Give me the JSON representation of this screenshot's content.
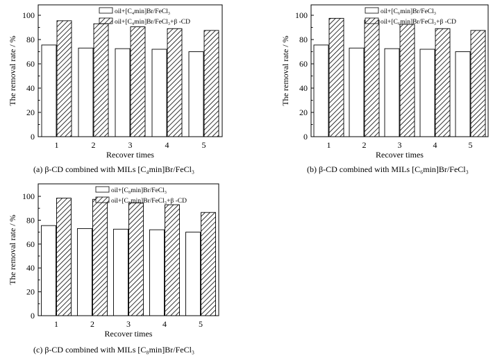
{
  "chart_data": [
    {
      "type": "bar",
      "panel": "a",
      "caption": "(a) β-CD combined with MILs [C₄min]Br/FeCl₃",
      "xlabel": "Recover times",
      "ylabel": "The removal rate / %",
      "categories": [
        "1",
        "2",
        "3",
        "4",
        "5"
      ],
      "yticks": [
        "0",
        "20",
        "40",
        "60",
        "80",
        "100"
      ],
      "ylim": [
        0,
        100
      ],
      "legend_position": "top-right",
      "series": [
        {
          "name": "oil+[C₄min]Br/FeCl₃",
          "pattern": "none",
          "values": [
            75.5,
            73,
            72.5,
            72,
            70
          ]
        },
        {
          "name": "oil+[C₄min]Br/FeCl₃+β -CD",
          "pattern": "hatched",
          "values": [
            95.5,
            93,
            90.5,
            89,
            87.5
          ]
        }
      ]
    },
    {
      "type": "bar",
      "panel": "b",
      "caption": "(b) β-CD combined with MILs [C₆min]Br/FeCl₃",
      "xlabel": "Recover times",
      "ylabel": "The removal rate / %",
      "categories": [
        "1",
        "2",
        "3",
        "4",
        "5"
      ],
      "yticks": [
        "0",
        "20",
        "40",
        "60",
        "80",
        "100"
      ],
      "ylim": [
        0,
        110
      ],
      "legend_position": "top-right",
      "series": [
        {
          "name": "oil+[C₆min]Br/FeCl₃",
          "pattern": "none",
          "values": [
            75.5,
            73,
            72.5,
            72,
            70
          ]
        },
        {
          "name": "oil+[C₆min]Br/FeCl₃+β -CD",
          "pattern": "hatched",
          "values": [
            97.5,
            96,
            92.5,
            89,
            87.5
          ]
        }
      ]
    },
    {
      "type": "bar",
      "panel": "c",
      "caption": "(c) β-CD combined with MILs [C₈min]Br/FeCl₃",
      "xlabel": "Recover times",
      "ylabel": "The removal rate / %",
      "categories": [
        "1",
        "2",
        "3",
        "4",
        "5"
      ],
      "yticks": [
        "0",
        "20",
        "40",
        "60",
        "80",
        "100"
      ],
      "ylim": [
        0,
        110
      ],
      "legend_position": "top-right",
      "series": [
        {
          "name": "oil+[C₈min]Br/FeCl₃",
          "pattern": "none",
          "values": [
            75.5,
            73,
            72.5,
            72,
            70
          ]
        },
        {
          "name": "oil+[C₈min]Br/FeCl₃+β -CD",
          "pattern": "hatched",
          "values": [
            98.5,
            97.5,
            94.5,
            93,
            86.5
          ]
        }
      ]
    }
  ]
}
